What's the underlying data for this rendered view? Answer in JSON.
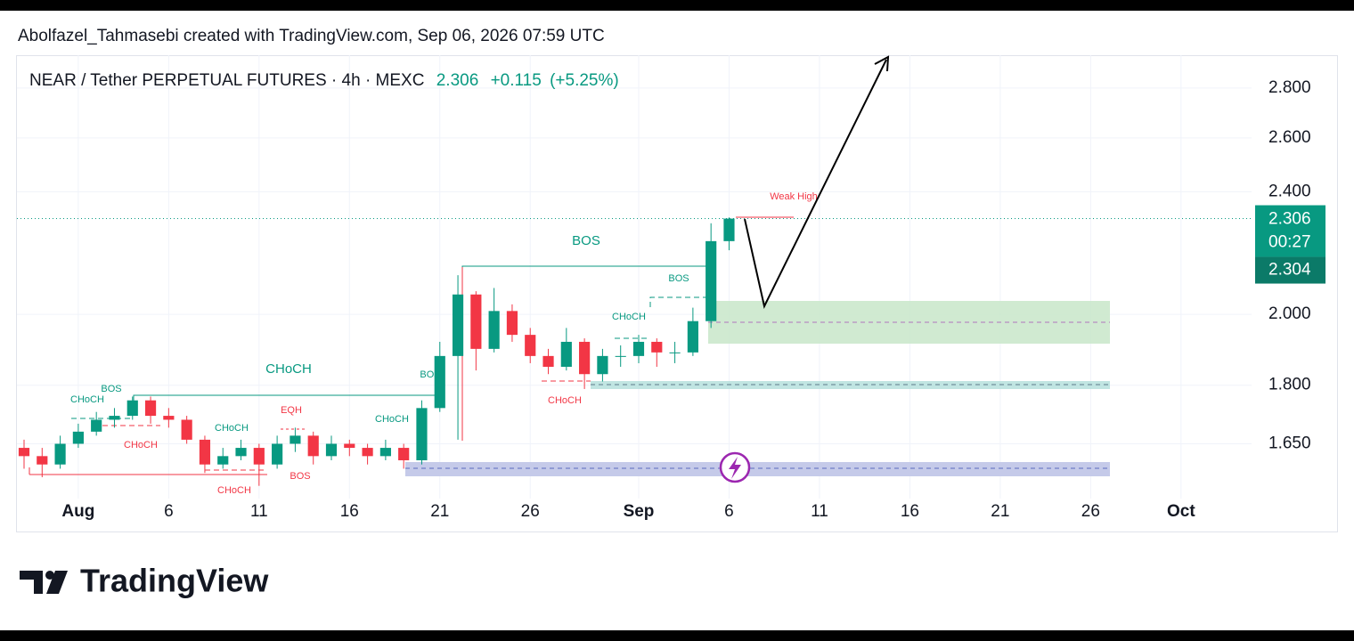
{
  "header": {
    "attribution": "Abolfazel_Tahmasebi created with TradingView.com, Sep 06, 2026 07:59 UTC"
  },
  "chart_data": {
    "type": "candlestick",
    "title": "NEAR / Tether PERPETUAL FUTURES · 4h · MEXC",
    "last": 2.306,
    "change": {
      "value": 0.115,
      "label": "+0.115"
    },
    "change_pct": {
      "value": 5.25,
      "label": "(+5.25%)"
    },
    "countdown": "00:27",
    "bid": 2.304,
    "x": [
      "2026-07-29",
      "2026-07-30",
      "2026-07-31",
      "2026-08-01",
      "2026-08-02",
      "2026-08-03",
      "2026-08-04",
      "2026-08-05",
      "2026-08-06",
      "2026-08-07",
      "2026-08-08",
      "2026-08-09",
      "2026-08-10",
      "2026-08-11",
      "2026-08-12",
      "2026-08-13",
      "2026-08-14",
      "2026-08-15",
      "2026-08-16",
      "2026-08-17",
      "2026-08-18",
      "2026-08-19",
      "2026-08-20",
      "2026-08-21",
      "2026-08-22",
      "2026-08-23",
      "2026-08-24",
      "2026-08-25",
      "2026-08-26",
      "2026-08-27",
      "2026-08-28",
      "2026-08-29",
      "2026-08-30",
      "2026-08-31",
      "2026-09-01",
      "2026-09-02",
      "2026-09-03",
      "2026-09-04",
      "2026-09-05",
      "2026-09-06"
    ],
    "open": [
      1.64,
      1.62,
      1.6,
      1.65,
      1.68,
      1.71,
      1.72,
      1.76,
      1.72,
      1.71,
      1.66,
      1.6,
      1.62,
      1.64,
      1.6,
      1.65,
      1.67,
      1.62,
      1.65,
      1.64,
      1.62,
      1.64,
      1.61,
      1.74,
      1.88,
      2.06,
      1.9,
      2.01,
      1.94,
      1.88,
      1.85,
      1.92,
      1.83,
      1.88,
      1.88,
      1.92,
      1.89,
      1.89,
      1.98,
      2.23
    ],
    "high": [
      1.66,
      1.64,
      1.67,
      1.7,
      1.73,
      1.74,
      1.77,
      1.77,
      1.74,
      1.72,
      1.67,
      1.64,
      1.66,
      1.65,
      1.67,
      1.69,
      1.68,
      1.67,
      1.66,
      1.65,
      1.66,
      1.65,
      1.76,
      1.92,
      2.12,
      2.07,
      2.08,
      2.03,
      1.96,
      1.9,
      1.96,
      1.93,
      1.9,
      1.91,
      1.94,
      1.93,
      1.92,
      2.02,
      2.29,
      2.31
    ],
    "low": [
      1.59,
      1.57,
      1.59,
      1.64,
      1.67,
      1.69,
      1.71,
      1.7,
      1.69,
      1.65,
      1.58,
      1.59,
      1.61,
      1.55,
      1.59,
      1.63,
      1.6,
      1.61,
      1.62,
      1.6,
      1.61,
      1.59,
      1.6,
      1.73,
      1.66,
      1.84,
      1.89,
      1.92,
      1.86,
      1.83,
      1.84,
      1.79,
      1.81,
      1.85,
      1.86,
      1.85,
      1.86,
      1.88,
      1.96,
      2.2
    ],
    "close": [
      1.62,
      1.6,
      1.65,
      1.68,
      1.71,
      1.72,
      1.76,
      1.72,
      1.71,
      1.66,
      1.6,
      1.62,
      1.64,
      1.6,
      1.65,
      1.67,
      1.62,
      1.65,
      1.64,
      1.62,
      1.64,
      1.61,
      1.74,
      1.88,
      2.06,
      1.9,
      2.01,
      1.94,
      1.88,
      1.85,
      1.92,
      1.83,
      1.88,
      1.88,
      1.92,
      1.89,
      1.89,
      1.98,
      2.23,
      2.306
    ],
    "colors": {
      "up": "#089981",
      "down": "#f23645"
    },
    "log_scale": true,
    "grid": true,
    "ylim": [
      1.525,
      2.94
    ],
    "yticks": [
      {
        "value": 1.65,
        "label": "1.650"
      },
      {
        "value": 1.8,
        "label": "1.800"
      },
      {
        "value": 2.0,
        "label": "2.000"
      },
      {
        "value": 2.4,
        "label": "2.400"
      },
      {
        "value": 2.6,
        "label": "2.600"
      },
      {
        "value": 2.8,
        "label": "2.800"
      }
    ],
    "xlim": [
      "2026-07-29",
      "2026-10-05"
    ],
    "xticks": [
      {
        "value": "2026-08-01",
        "label": "Aug"
      },
      {
        "value": "2026-08-06",
        "label": "6"
      },
      {
        "value": "2026-08-11",
        "label": "11"
      },
      {
        "value": "2026-08-16",
        "label": "16"
      },
      {
        "value": "2026-08-21",
        "label": "21"
      },
      {
        "value": "2026-08-26",
        "label": "26"
      },
      {
        "value": "2026-09-01",
        "label": "Sep"
      },
      {
        "value": "2026-09-06",
        "label": "6"
      },
      {
        "value": "2026-09-11",
        "label": "11"
      },
      {
        "value": "2026-09-16",
        "label": "16"
      },
      {
        "value": "2026-09-21",
        "label": "21"
      },
      {
        "value": "2026-09-26",
        "label": "26"
      },
      {
        "value": "2026-10-01",
        "label": "Oct"
      }
    ],
    "annotations": [
      "CHoCH",
      "BOS",
      "CHoCH",
      "CHoCH",
      "EQH",
      "BOS",
      "CHoCH",
      "CHoCH",
      "CHoCH",
      "BOS",
      "BOS",
      "BOS",
      "CHoCH",
      "CHoCH",
      "Weak High"
    ]
  },
  "footer": {
    "brand": "TradingView"
  }
}
